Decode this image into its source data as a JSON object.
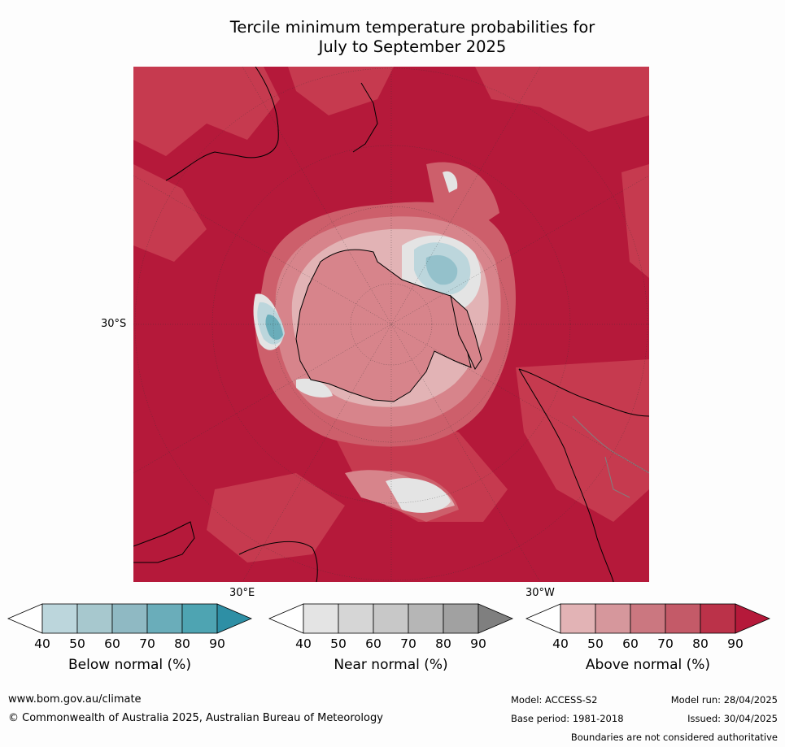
{
  "title_line1": "Tercile minimum temperature probabilities for",
  "title_line2": "July to September 2025",
  "graticule": {
    "lat_label": "30°S",
    "lon_label_east": "30°E",
    "lon_label_west": "30°W"
  },
  "colors": {
    "ocean_above_90": "#b5193a",
    "above_80": "#c83e52",
    "above_70": "#cd5f6b",
    "above_60": "#d7848b",
    "above_50": "#e2b3b5",
    "near_normal_50": "#e4e4e4",
    "below_50": "#bcd6dc",
    "below_60": "#94c1cb",
    "below_70": "#6aadba"
  },
  "legends": [
    {
      "name": "Below normal (%)",
      "ticks": [
        "40",
        "50",
        "60",
        "70",
        "80",
        "90"
      ],
      "colors": [
        "#bcd6dc",
        "#a7c8ce",
        "#8fb9c3",
        "#6aadba",
        "#4ea4b2"
      ],
      "over_color": "#2e8fa5",
      "under_color": "#ffffff"
    },
    {
      "name": "Near normal (%)",
      "ticks": [
        "40",
        "50",
        "60",
        "70",
        "80",
        "90"
      ],
      "colors": [
        "#e4e4e4",
        "#d6d6d6",
        "#c8c8c8",
        "#b6b6b6",
        "#a1a1a1"
      ],
      "over_color": "#7f7f7f",
      "under_color": "#ffffff"
    },
    {
      "name": "Above normal (%)",
      "ticks": [
        "40",
        "50",
        "60",
        "70",
        "80",
        "90"
      ],
      "colors": [
        "#e2b3b5",
        "#d6979c",
        "#cb7780",
        "#c45a68",
        "#bb3249"
      ],
      "over_color": "#b5193a",
      "under_color": "#ffffff"
    }
  ],
  "footer": {
    "website": "www.bom.gov.au/climate",
    "copyright": "© Commonwealth of Australia 2025, Australian Bureau of Meteorology",
    "model": "Model: ACCESS-S2",
    "model_run": "Model run: 28/04/2025",
    "base_period": "Base period: 1981-2018",
    "issued": "Issued: 30/04/2025",
    "disclaimer": "Boundaries are not considered authoritative"
  }
}
